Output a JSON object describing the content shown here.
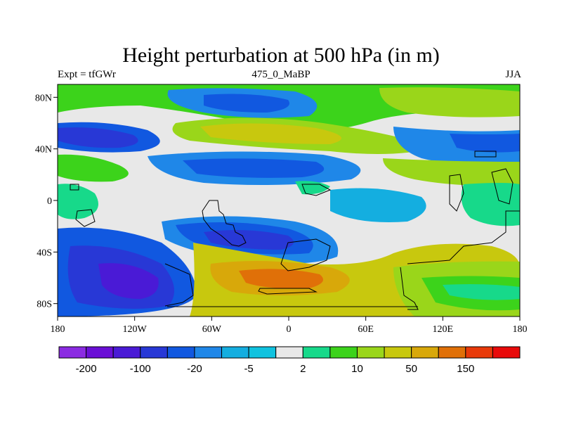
{
  "title": "Height perturbation at 500 hPa (in m)",
  "left_string": "Expt = tfGWr",
  "center_string": "475_0_MaBP",
  "right_string": "JJA",
  "x_ticks": [
    "180",
    "120W",
    "60W",
    "0",
    "60E",
    "120E",
    "180"
  ],
  "y_ticks": [
    "80N",
    "40N",
    "0",
    "40S",
    "80S"
  ],
  "colorbar": {
    "colors": [
      "#8b2be2",
      "#6a0fd6",
      "#4a1ad6",
      "#2838d6",
      "#1158e0",
      "#1f87e8",
      "#14aee0",
      "#10c2df",
      "#e8e8e8",
      "#17d98a",
      "#3cd31b",
      "#9ad61a",
      "#c8c80e",
      "#d8a80a",
      "#e07008",
      "#e83a0a",
      "#e80a0a"
    ],
    "labels": [
      "-200",
      "-100",
      "-20",
      "-5",
      "2",
      "10",
      "50",
      "150"
    ]
  },
  "palette": {
    "white": "#e8e8e8",
    "blue_dark": "#2838d6",
    "blue": "#1f87e8",
    "cyan": "#14aee0",
    "violet": "#4a1ad6",
    "green": "#17d98a",
    "lime": "#3cd31b",
    "yellow_green": "#9ad61a",
    "olive": "#c8c80e",
    "orange": "#d8a80a",
    "dark_orange": "#e07008"
  }
}
